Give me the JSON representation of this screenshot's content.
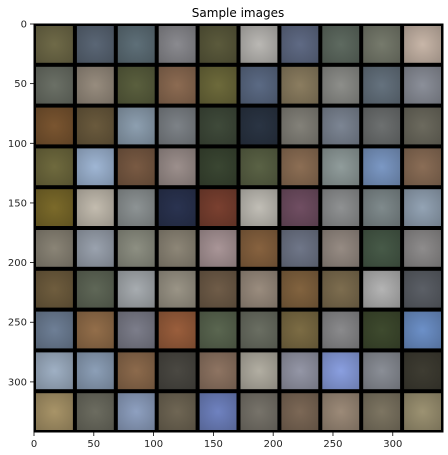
{
  "chart_data": {
    "type": "image_grid",
    "title": "Sample images",
    "grid": {
      "rows": 10,
      "cols": 10
    },
    "extent": {
      "x": [
        0,
        342
      ],
      "y": [
        342,
        0
      ]
    },
    "xticks": [
      0,
      50,
      100,
      150,
      200,
      250,
      300
    ],
    "yticks": [
      0,
      50,
      100,
      150,
      200,
      250,
      300
    ],
    "border_color": "#000000",
    "tiles": [
      [
        "#6f6a48",
        "#5a6675",
        "#5e6f78",
        "#8a8a8f",
        "#5b5a3c",
        "#bab8b4",
        "#5f6a84",
        "#5e6a60",
        "#767a6c",
        "#c8b6a8"
      ],
      [
        "#6b7066",
        "#978c7e",
        "#5a5f3e",
        "#8c6b52",
        "#6d6a3b",
        "#5b6a84",
        "#8b7d60",
        "#8d8e8a",
        "#65727e",
        "#8b8f99"
      ],
      [
        "#7a5530",
        "#6a5a3d",
        "#8d9fb0",
        "#7d8287",
        "#3f4a3a",
        "#2a3443",
        "#838179",
        "#7c8593",
        "#6d7070",
        "#6c6a5e"
      ],
      [
        "#6f6a3e",
        "#9fb6d4",
        "#795a43",
        "#9c8f8c",
        "#3a4632",
        "#5a6245",
        "#8c6e54",
        "#909c9b",
        "#7b98c4",
        "#8a6d56"
      ],
      [
        "#7b6a2a",
        "#c3bcaf",
        "#8d9394",
        "#2a3350",
        "#7a4030",
        "#c1beb6",
        "#704e62",
        "#8f9192",
        "#7f8a8c",
        "#93a3b4"
      ],
      [
        "#8a8476",
        "#9aa2ae",
        "#8d8f82",
        "#8d8677",
        "#a99597",
        "#87623f",
        "#6f7688",
        "#968b83",
        "#475a48",
        "#8e8c8c"
      ],
      [
        "#6f5d3e",
        "#5f6757",
        "#a7acb0",
        "#9a9486",
        "#6f5c48",
        "#9a8c7e",
        "#82633f",
        "#7d6d4f",
        "#b4b4b4",
        "#5b5f66"
      ],
      [
        "#6e7f96",
        "#936e4a",
        "#7c7d8a",
        "#9a5e3c",
        "#5a6650",
        "#6a6e62",
        "#7c6c44",
        "#8a8a8c",
        "#3e4a2e",
        "#6c90c8"
      ],
      [
        "#9fb0c4",
        "#8c9fb7",
        "#8c6a4c",
        "#4a4842",
        "#8e7462",
        "#b2aea2",
        "#9496a6",
        "#8a9fe0",
        "#8a8e96",
        "#3e3c32"
      ],
      [
        "#a89468",
        "#6c6c60",
        "#8ea0c0",
        "#6f6654",
        "#6f82c0",
        "#77736a",
        "#7c6856",
        "#9c8a78",
        "#7d7562",
        "#9c9272"
      ]
    ]
  }
}
